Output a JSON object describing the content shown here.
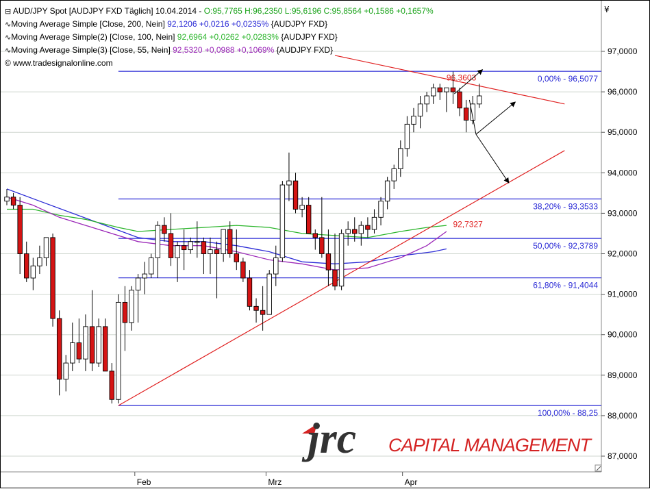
{
  "header": {
    "line1": {
      "name": "AUD/JPY Spot [AUDJPY FXD  Täglich]",
      "date": "10.04.2014",
      "ohlc": "O:95,7765 H:96,2350 L:95,6196 C:95,8564 +0,1586 +0,1657%",
      "ohlc_color": "#1aa31a"
    },
    "line2": {
      "label": "Moving Average Simple [Close, 200, Nein]",
      "value": "92,1206 +0,0216 +0,0235%",
      "suffix": "{AUDJPY FXD}",
      "color": "#2b2bd6"
    },
    "line3": {
      "label": "Moving Average Simple(2) [Close, 100, Nein]",
      "value": "92,6964 +0,0262 +0,0283%",
      "suffix": "{AUDJPY FXD}",
      "color": "#2bb52b"
    },
    "line4": {
      "label": "Moving Average Simple(3) [Close, 55, Nein]",
      "value": "92,5320 +0,0988 +0,1069%",
      "suffix": "{AUDJPY FXD}",
      "color": "#9b28b8"
    },
    "copyright": "© www.tradesignalonline.com"
  },
  "chart_data": {
    "type": "candlestick",
    "currency_symbol": "¥",
    "y_ticks": [
      "97,0000",
      "96,0000",
      "95,0000",
      "94,0000",
      "93,0000",
      "92,0000",
      "91,0000",
      "90,0000",
      "89,0000",
      "88,0000",
      "87,0000"
    ],
    "y_tick_values": [
      97,
      96,
      95,
      94,
      93,
      92,
      91,
      90,
      89,
      88,
      87
    ],
    "ylim": [
      86.55,
      98.1
    ],
    "x_labels": [
      {
        "label": "Feb",
        "index": 19.5
      },
      {
        "label": "Mrz",
        "index": 39.5
      },
      {
        "label": "Apr",
        "index": 60.3
      }
    ],
    "grid": "horizontal",
    "candles": [
      {
        "o": 93.3,
        "h": 93.6,
        "l": 93.2,
        "c": 93.4
      },
      {
        "o": 93.4,
        "h": 93.5,
        "l": 93.1,
        "c": 93.2
      },
      {
        "o": 93.2,
        "h": 93.4,
        "l": 91.5,
        "c": 92.0
      },
      {
        "o": 92.0,
        "h": 92.3,
        "l": 91.3,
        "c": 91.4
      },
      {
        "o": 91.4,
        "h": 91.9,
        "l": 91.1,
        "c": 91.7
      },
      {
        "o": 91.7,
        "h": 92.2,
        "l": 91.5,
        "c": 91.9
      },
      {
        "o": 91.9,
        "h": 92.4,
        "l": 91.7,
        "c": 92.4
      },
      {
        "o": 92.4,
        "h": 92.5,
        "l": 90.2,
        "c": 90.4
      },
      {
        "o": 90.4,
        "h": 90.6,
        "l": 88.5,
        "c": 88.9
      },
      {
        "o": 88.9,
        "h": 89.5,
        "l": 88.6,
        "c": 89.3
      },
      {
        "o": 89.3,
        "h": 90.3,
        "l": 89.1,
        "c": 89.8
      },
      {
        "o": 89.8,
        "h": 90.4,
        "l": 89.3,
        "c": 89.4
      },
      {
        "o": 89.4,
        "h": 90.5,
        "l": 89.1,
        "c": 90.2
      },
      {
        "o": 90.2,
        "h": 91.1,
        "l": 89.1,
        "c": 89.3
      },
      {
        "o": 89.3,
        "h": 90.4,
        "l": 89.2,
        "c": 90.2
      },
      {
        "o": 90.2,
        "h": 90.4,
        "l": 89.2,
        "c": 89.1
      },
      {
        "o": 89.1,
        "h": 89.3,
        "l": 88.3,
        "c": 88.4
      },
      {
        "o": 88.4,
        "h": 91.0,
        "l": 88.3,
        "c": 90.8
      },
      {
        "o": 90.8,
        "h": 91.2,
        "l": 89.6,
        "c": 90.3
      },
      {
        "o": 90.3,
        "h": 91.2,
        "l": 90.1,
        "c": 91.1
      },
      {
        "o": 91.1,
        "h": 91.5,
        "l": 90.3,
        "c": 91.4
      },
      {
        "o": 91.4,
        "h": 91.8,
        "l": 91.0,
        "c": 91.5
      },
      {
        "o": 91.5,
        "h": 92.0,
        "l": 91.4,
        "c": 91.9
      },
      {
        "o": 91.9,
        "h": 92.8,
        "l": 91.4,
        "c": 92.7
      },
      {
        "o": 92.7,
        "h": 92.9,
        "l": 92.3,
        "c": 92.5
      },
      {
        "o": 92.5,
        "h": 93.0,
        "l": 91.7,
        "c": 91.9
      },
      {
        "o": 91.9,
        "h": 92.3,
        "l": 91.3,
        "c": 92.2
      },
      {
        "o": 92.2,
        "h": 92.6,
        "l": 91.6,
        "c": 92.1
      },
      {
        "o": 92.1,
        "h": 92.4,
        "l": 92.0,
        "c": 92.3
      },
      {
        "o": 92.3,
        "h": 92.8,
        "l": 91.9,
        "c": 92.3
      },
      {
        "o": 92.3,
        "h": 92.4,
        "l": 91.5,
        "c": 92.0
      },
      {
        "o": 92.0,
        "h": 92.4,
        "l": 91.5,
        "c": 92.1
      },
      {
        "o": 92.1,
        "h": 92.3,
        "l": 90.9,
        "c": 92.0
      },
      {
        "o": 92.0,
        "h": 92.6,
        "l": 91.8,
        "c": 92.6
      },
      {
        "o": 92.6,
        "h": 92.8,
        "l": 91.9,
        "c": 92.0
      },
      {
        "o": 92.0,
        "h": 92.6,
        "l": 91.6,
        "c": 91.8
      },
      {
        "o": 91.8,
        "h": 91.9,
        "l": 91.3,
        "c": 91.4
      },
      {
        "o": 91.4,
        "h": 91.6,
        "l": 90.6,
        "c": 90.7
      },
      {
        "o": 90.7,
        "h": 90.9,
        "l": 90.3,
        "c": 90.6
      },
      {
        "o": 90.6,
        "h": 91.2,
        "l": 90.1,
        "c": 90.5
      },
      {
        "o": 90.5,
        "h": 91.6,
        "l": 90.5,
        "c": 91.5
      },
      {
        "o": 91.5,
        "h": 92.2,
        "l": 91.2,
        "c": 91.9
      },
      {
        "o": 91.9,
        "h": 93.8,
        "l": 91.8,
        "c": 93.7
      },
      {
        "o": 93.7,
        "h": 94.5,
        "l": 93.3,
        "c": 93.8
      },
      {
        "o": 93.8,
        "h": 94.0,
        "l": 93.0,
        "c": 93.1
      },
      {
        "o": 93.1,
        "h": 93.4,
        "l": 92.9,
        "c": 93.2
      },
      {
        "o": 93.2,
        "h": 93.4,
        "l": 92.5,
        "c": 92.5
      },
      {
        "o": 92.5,
        "h": 92.6,
        "l": 92.1,
        "c": 92.4
      },
      {
        "o": 92.4,
        "h": 93.4,
        "l": 91.9,
        "c": 92.0
      },
      {
        "o": 92.0,
        "h": 92.6,
        "l": 91.2,
        "c": 91.6
      },
      {
        "o": 91.6,
        "h": 92.5,
        "l": 91.1,
        "c": 91.2
      },
      {
        "o": 91.2,
        "h": 92.6,
        "l": 91.1,
        "c": 92.5
      },
      {
        "o": 92.5,
        "h": 92.8,
        "l": 92.2,
        "c": 92.6
      },
      {
        "o": 92.6,
        "h": 92.9,
        "l": 92.3,
        "c": 92.5
      },
      {
        "o": 92.5,
        "h": 92.8,
        "l": 92.2,
        "c": 92.7
      },
      {
        "o": 92.7,
        "h": 92.9,
        "l": 92.4,
        "c": 92.6
      },
      {
        "o": 92.6,
        "h": 93.1,
        "l": 92.5,
        "c": 92.9
      },
      {
        "o": 92.9,
        "h": 93.4,
        "l": 92.7,
        "c": 93.3
      },
      {
        "o": 93.3,
        "h": 93.9,
        "l": 93.1,
        "c": 93.8
      },
      {
        "o": 93.8,
        "h": 94.2,
        "l": 93.6,
        "c": 94.1
      },
      {
        "o": 94.1,
        "h": 94.8,
        "l": 93.9,
        "c": 94.6
      },
      {
        "o": 94.6,
        "h": 95.4,
        "l": 94.4,
        "c": 95.2
      },
      {
        "o": 95.2,
        "h": 95.6,
        "l": 95.0,
        "c": 95.4
      },
      {
        "o": 95.4,
        "h": 95.9,
        "l": 95.1,
        "c": 95.7
      },
      {
        "o": 95.7,
        "h": 96.0,
        "l": 95.5,
        "c": 95.9
      },
      {
        "o": 95.9,
        "h": 96.2,
        "l": 95.7,
        "c": 96.1
      },
      {
        "o": 96.1,
        "h": 96.2,
        "l": 95.8,
        "c": 96.0
      },
      {
        "o": 96.0,
        "h": 96.1,
        "l": 95.5,
        "c": 96.1
      },
      {
        "o": 96.1,
        "h": 96.5,
        "l": 95.7,
        "c": 96.0
      },
      {
        "o": 96.0,
        "h": 96.1,
        "l": 95.4,
        "c": 95.6
      },
      {
        "o": 95.6,
        "h": 95.8,
        "l": 95.0,
        "c": 95.3
      },
      {
        "o": 95.3,
        "h": 95.9,
        "l": 95.2,
        "c": 95.7
      },
      {
        "o": 95.7,
        "h": 96.2,
        "l": 95.6,
        "c": 95.9
      }
    ],
    "moving_averages": [
      {
        "name": "Moving Average Simple [Close, 200, Nein]",
        "color": "#2b2bd6",
        "points": [
          [
            0,
            93.6
          ],
          [
            5,
            93.3
          ],
          [
            10,
            93.0
          ],
          [
            15,
            92.7
          ],
          [
            20,
            92.4
          ],
          [
            25,
            92.3
          ],
          [
            30,
            92.3
          ],
          [
            35,
            92.2
          ],
          [
            40,
            92.05
          ],
          [
            45,
            91.8
          ],
          [
            50,
            91.75
          ],
          [
            55,
            91.8
          ],
          [
            60,
            91.95
          ],
          [
            65,
            92.05
          ],
          [
            67,
            92.12
          ]
        ]
      },
      {
        "name": "Moving Average Simple(2) [Close, 100, Nein]",
        "color": "#2bb52b",
        "points": [
          [
            0,
            93.1
          ],
          [
            4,
            93.1
          ],
          [
            8,
            92.95
          ],
          [
            12,
            92.85
          ],
          [
            17,
            92.65
          ],
          [
            20,
            92.55
          ],
          [
            25,
            92.6
          ],
          [
            30,
            92.65
          ],
          [
            35,
            92.7
          ],
          [
            40,
            92.65
          ],
          [
            45,
            92.5
          ],
          [
            50,
            92.45
          ],
          [
            55,
            92.4
          ],
          [
            60,
            92.55
          ],
          [
            64,
            92.65
          ],
          [
            67,
            92.7
          ]
        ]
      },
      {
        "name": "Moving Average Simple(3) [Close, 55, Nein]",
        "color": "#9b28b8",
        "points": [
          [
            0,
            93.4
          ],
          [
            4,
            93.2
          ],
          [
            8,
            92.9
          ],
          [
            12,
            92.7
          ],
          [
            15,
            92.55
          ],
          [
            20,
            92.3
          ],
          [
            25,
            92.2
          ],
          [
            30,
            92.2
          ],
          [
            35,
            92.05
          ],
          [
            40,
            91.85
          ],
          [
            45,
            91.75
          ],
          [
            50,
            91.6
          ],
          [
            55,
            91.65
          ],
          [
            60,
            91.9
          ],
          [
            64,
            92.2
          ],
          [
            67,
            92.55
          ]
        ]
      }
    ],
    "fibonacci": [
      {
        "label": "0,00% - 96,5077",
        "value": 96.5077
      },
      {
        "label": "38,20% - 93,3533",
        "value": 93.3533
      },
      {
        "label": "50,00% - 92,3789",
        "value": 92.3789
      },
      {
        "label": "61,80% - 91,4044",
        "value": 91.4044
      },
      {
        "label": "100,00% - 88,25",
        "value": 88.25
      }
    ],
    "trendlines": [
      {
        "name": "resistance",
        "color": "#e02020",
        "from": [
          50,
          96.9
        ],
        "to": [
          85,
          95.7
        ],
        "label": "96,3603",
        "label_at": [
          67,
          96.35
        ]
      },
      {
        "name": "support",
        "color": "#e02020",
        "from": [
          17,
          88.25
        ],
        "to": [
          85,
          94.55
        ],
        "label": "92,7327",
        "label_at": [
          68,
          92.73
        ]
      }
    ],
    "arrows": [
      {
        "from": [
          68.2,
          95.95
        ],
        "to": [
          72.5,
          96.55
        ]
      },
      {
        "from": [
          71.5,
          94.95
        ],
        "to": [
          77.5,
          95.75
        ]
      },
      {
        "from": [
          70.5,
          95.8
        ],
        "to": [
          71.5,
          94.95
        ]
      },
      {
        "from": [
          71.5,
          94.95
        ],
        "to": [
          76.5,
          93.75
        ]
      }
    ]
  },
  "logo": {
    "mark": "jrc",
    "text": "CAPITAL MANAGEMENT",
    "color": "#d42323"
  }
}
